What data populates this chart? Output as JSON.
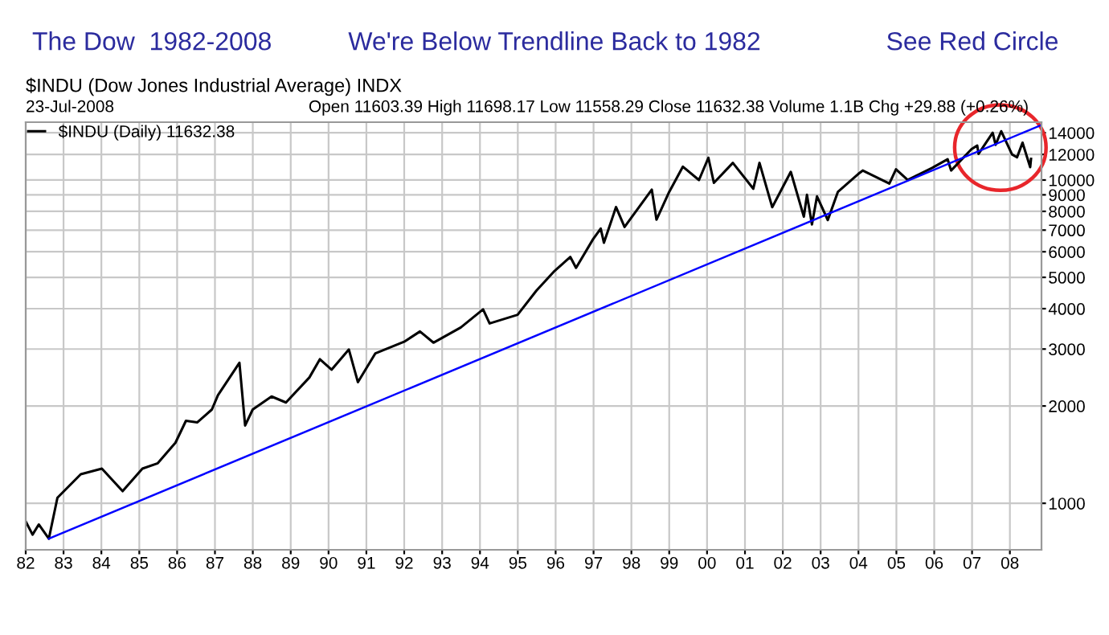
{
  "chart_data": {
    "type": "line",
    "title": "The Dow  1982-2008",
    "subtitle": "$INDU (Dow Jones Industrial Average) INDX",
    "annotations": [
      "We're Below Trendline Back to 1982",
      "See Red Circle",
      "23-Jul-2008",
      "Open 11603.39 High 11698.17 Low 11558.29 Close 11632.38 Volume 1.1B Chg +29.88 (+0.26%)"
    ],
    "log": "y",
    "grid": true,
    "legend": "top left",
    "line_style": "solid",
    "xlim": [
      "1982-01-01",
      "2008-11-01"
    ],
    "xticks": [
      {
        "value": "1982-01-01",
        "label": "82"
      },
      {
        "value": "1983-01-01",
        "label": "83"
      },
      {
        "value": "1984-01-01",
        "label": "84"
      },
      {
        "value": "1985-01-01",
        "label": "85"
      },
      {
        "value": "1986-01-01",
        "label": "86"
      },
      {
        "value": "1987-01-01",
        "label": "87"
      },
      {
        "value": "1988-01-01",
        "label": "88"
      },
      {
        "value": "1989-01-01",
        "label": "89"
      },
      {
        "value": "1990-01-01",
        "label": "90"
      },
      {
        "value": "1991-01-01",
        "label": "91"
      },
      {
        "value": "1992-01-01",
        "label": "92"
      },
      {
        "value": "1993-01-01",
        "label": "93"
      },
      {
        "value": "1994-01-01",
        "label": "94"
      },
      {
        "value": "1995-01-01",
        "label": "95"
      },
      {
        "value": "1996-01-01",
        "label": "96"
      },
      {
        "value": "1997-01-01",
        "label": "97"
      },
      {
        "value": "1998-01-01",
        "label": "98"
      },
      {
        "value": "1999-01-01",
        "label": "99"
      },
      {
        "value": "2000-01-01",
        "label": "00"
      },
      {
        "value": "2001-01-01",
        "label": "01"
      },
      {
        "value": "2002-01-01",
        "label": "02"
      },
      {
        "value": "2003-01-01",
        "label": "03"
      },
      {
        "value": "2004-01-01",
        "label": "04"
      },
      {
        "value": "2005-01-01",
        "label": "05"
      },
      {
        "value": "2006-01-01",
        "label": "06"
      },
      {
        "value": "2007-01-01",
        "label": "07"
      },
      {
        "value": "2008-01-01",
        "label": "08"
      }
    ],
    "ylim": [
      718,
      15100
    ],
    "yticks": [
      1000,
      2000,
      3000,
      4000,
      5000,
      6000,
      7000,
      8000,
      9000,
      10000,
      12000,
      14000
    ],
    "series": [
      {
        "name": "$INDU (Daily) 11632.38",
        "color": "#000000",
        "x": [
          "1982-01-04",
          "1982-03-08",
          "1982-05-07",
          "1982-08-12",
          "1982-11-03",
          "1983-06-16",
          "1984-01-06",
          "1984-07-24",
          "1985-01-31",
          "1985-06-28",
          "1985-12-16",
          "1986-03-27",
          "1986-07-15",
          "1986-12-02",
          "1987-01-30",
          "1987-08-25",
          "1987-10-19",
          "1987-12-31",
          "1988-06-30",
          "1988-11-16",
          "1989-06-30",
          "1989-10-09",
          "1990-01-30",
          "1990-07-16",
          "1990-10-11",
          "1991-03-29",
          "1991-12-31",
          "1992-06-01",
          "1992-10-09",
          "1993-06-30",
          "1994-01-31",
          "1994-04-04",
          "1994-12-30",
          "1995-06-30",
          "1995-12-13",
          "1996-05-22",
          "1996-07-16",
          "1996-12-27",
          "1997-03-11",
          "1997-04-11",
          "1997-08-06",
          "1997-10-27",
          "1998-07-17",
          "1998-08-31",
          "1998-12-31",
          "1999-05-13",
          "1999-10-15",
          "2000-01-14",
          "2000-03-07",
          "2000-09-06",
          "2001-03-22",
          "2001-05-21",
          "2001-09-21",
          "2002-03-19",
          "2002-07-23",
          "2002-08-22",
          "2002-10-09",
          "2002-11-27",
          "2003-03-11",
          "2003-06-17",
          "2003-12-31",
          "2004-02-11",
          "2004-10-25",
          "2004-12-28",
          "2005-04-20",
          "2005-12-12",
          "2006-05-10",
          "2006-06-13",
          "2006-12-27",
          "2007-02-20",
          "2007-03-05",
          "2007-07-19",
          "2007-08-16",
          "2007-10-09",
          "2008-01-22",
          "2008-03-10",
          "2008-05-02",
          "2008-07-15",
          "2008-07-23"
        ],
        "values": [
          875,
          800,
          860,
          777,
          1040,
          1230,
          1280,
          1090,
          1280,
          1330,
          1540,
          1800,
          1780,
          1950,
          2160,
          2720,
          1740,
          1950,
          2140,
          2050,
          2450,
          2790,
          2590,
          2990,
          2370,
          2910,
          3160,
          3400,
          3140,
          3500,
          3980,
          3600,
          3830,
          4550,
          5200,
          5780,
          5350,
          6560,
          7080,
          6400,
          8250,
          7160,
          9340,
          7540,
          9180,
          11000,
          10000,
          11720,
          9800,
          11300,
          9400,
          11300,
          8240,
          10600,
          7700,
          9000,
          7290,
          8900,
          7520,
          9200,
          10450,
          10700,
          9750,
          10800,
          10000,
          10900,
          11600,
          10700,
          12460,
          12780,
          12050,
          14000,
          12850,
          14160,
          12000,
          11750,
          13050,
          10960,
          11632.38
        ]
      },
      {
        "color": "#0000ff",
        "x": [
          "1982-08-12",
          "2008-11-01"
        ],
        "values": [
          777,
          14800
        ]
      }
    ]
  }
}
